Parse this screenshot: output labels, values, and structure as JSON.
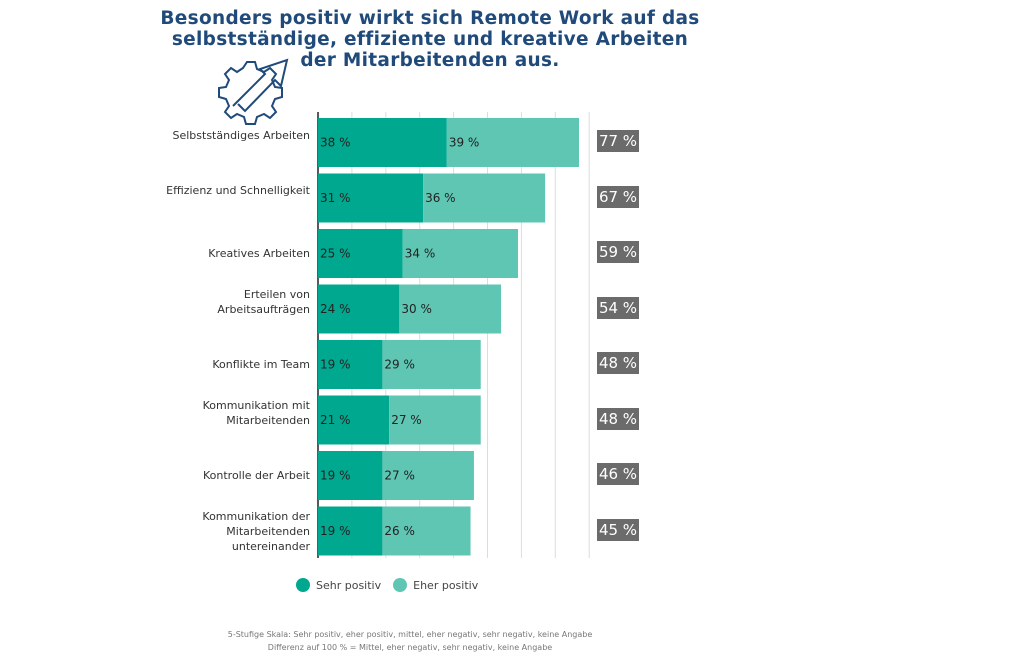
{
  "chart_data": {
    "type": "bar",
    "orientation": "horizontal-stacked",
    "title": "Besonders positiv wirkt sich Remote Work auf das selbstständige, effiziente und kreative Arbeiten der Mitarbeitenden aus.",
    "categories": [
      "Selbstständiges Arbeiten",
      "Effizienz und Schnelligkeit",
      "Kreatives Arbeiten",
      "Erteilen von Arbeitsaufträgen",
      "Konflikte im Team",
      "Kommunikation mit Mitarbeitenden",
      "Kontrolle der Arbeit",
      "Kommunikation der Mitarbeitenden untereinander"
    ],
    "series": [
      {
        "name": "Sehr positiv",
        "color": "#00a88f",
        "values": [
          38,
          31,
          25,
          24,
          19,
          21,
          19,
          19
        ]
      },
      {
        "name": "Eher positiv",
        "color": "#5fc6b4",
        "values": [
          39,
          36,
          34,
          30,
          29,
          27,
          27,
          26
        ]
      }
    ],
    "totals": [
      "77 %",
      "67 %",
      "59 %",
      "54 %",
      "48 %",
      "48 %",
      "46 %",
      "45 %"
    ],
    "unit": " %",
    "xlim": [
      0,
      80
    ],
    "grid": true,
    "legend": "bottom"
  },
  "footnote": [
    "5-Stufige Skala: Sehr positiv, eher positiv, mittel, eher negativ, sehr negativ, keine Angabe",
    "Differenz auf 100 % = Mittel, eher negativ, sehr negativ, keine Angabe"
  ]
}
